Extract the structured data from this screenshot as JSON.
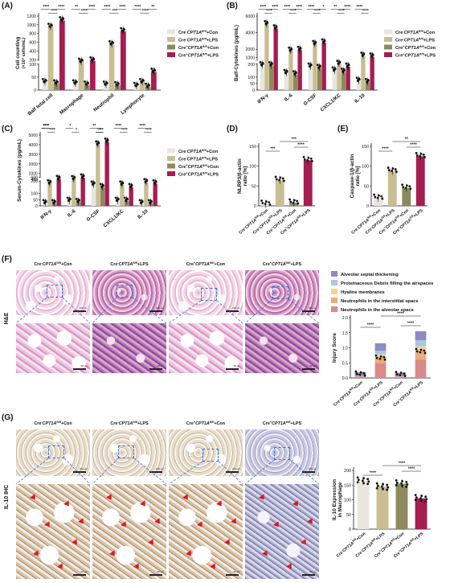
{
  "colors": {
    "con_ko": "#e9e6de",
    "lps_ko": "#c9bd93",
    "con_wt": "#8c8a5c",
    "lps_wt": "#a61d4f",
    "roi": "#2f6fd6",
    "arrow": "#e0151b",
    "injury_septal": "#8e8ac6",
    "injury_protein": "#a9c6e4",
    "injury_hyaline": "#f3d58a",
    "injury_interstitial": "#e9ad7e",
    "injury_alveolar": "#d98b86"
  },
  "panels": {
    "A": "(A)",
    "B": "(B)",
    "C": "(C)",
    "D": "(D)",
    "E": "(E)",
    "F": "(F)",
    "G": "(G)"
  },
  "legend4": [
    {
      "pre": "Cre",
      "sup1": "-",
      "gene": "CPT1A",
      "sup2": "fl/fl",
      "post": "+Con"
    },
    {
      "pre": "Cre",
      "sup1": "-",
      "gene": "CPT1A",
      "sup2": "fl/fl",
      "post": "+LPS"
    },
    {
      "pre": "Cre",
      "sup1": "+",
      "gene": "CPT1A",
      "sup2": "fl/fl",
      "post": "+Con"
    },
    {
      "pre": "Cre",
      "sup1": "+",
      "gene": "CPT1A",
      "sup2": "fl/fl",
      "post": "+LPS"
    }
  ],
  "x_groups4": [
    {
      "pre": "Cre",
      "sup1": "-",
      "gene": "CPT1A",
      "sup2": "fl/fl",
      "post": "+Con"
    },
    {
      "pre": "Cre",
      "sup1": "-",
      "gene": "CPT1A",
      "sup2": "fl/fl",
      "post": "+LPS"
    },
    {
      "pre": "Cre",
      "sup1": "+",
      "gene": "CPT1A",
      "sup2": "fl/fl",
      "post": "+Con"
    },
    {
      "pre": "Cre",
      "sup1": "+",
      "gene": "CPT1A",
      "sup2": "fl/fl",
      "post": "+LPS"
    }
  ],
  "rows": {
    "F": "H&E",
    "G": "IL-10  IHC"
  },
  "scale": {
    "low": "200 μm",
    "high": "50 μm"
  },
  "chart_data": [
    {
      "panel": "A",
      "type": "bar",
      "ylabel": "Cell counting",
      "ylabel2": "(×10⁴ cells/mL)",
      "categories": [
        "Balf total cell",
        "Macrophage",
        "Neutrophil",
        "Lymphocyte"
      ],
      "yticks": [
        "0",
        "50",
        "100",
        "200",
        "400",
        "600",
        "800",
        "1000",
        "1200"
      ],
      "ylim": [
        0,
        1200
      ],
      "break_at": 100,
      "series": [
        {
          "values": [
            30,
            25,
            20,
            15
          ]
        },
        {
          "values": [
            950,
            150,
            550,
            30
          ]
        },
        {
          "values": [
            25,
            20,
            18,
            12
          ]
        },
        {
          "values": [
            1100,
            180,
            850,
            70
          ]
        }
      ],
      "sig": [
        "****",
        "****",
        "****",
        "**",
        "****",
        "****",
        "****",
        "***",
        "****",
        "****",
        "****",
        "**"
      ]
    },
    {
      "panel": "B",
      "type": "bar",
      "ylabel": "Balf-Cytokines (pg/mL)",
      "categories": [
        "IFN-γ",
        "IL-6",
        "G-CSF",
        "CXCL1/KC",
        "IL-10"
      ],
      "yticks": [
        "0",
        "50",
        "100",
        "200",
        "1000",
        "2000",
        "4000",
        "6000"
      ],
      "ylim": [
        0,
        6000
      ],
      "break_at": 200,
      "series": [
        {
          "values": [
            190,
            130,
            180,
            150,
            70
          ]
        },
        {
          "values": [
            5000,
            1800,
            2600,
            220,
            1200
          ]
        },
        {
          "values": [
            190,
            120,
            170,
            140,
            60
          ]
        },
        {
          "values": [
            4500,
            1900,
            2800,
            180,
            1100
          ]
        }
      ],
      "sig": [
        "****",
        "****",
        "****",
        "****",
        "****",
        "****",
        "****",
        "****",
        "*",
        "**",
        "****",
        "****",
        "****",
        "****"
      ]
    },
    {
      "panel": "C",
      "type": "bar",
      "ylabel": "Serum-Cytokines (pg/mL)",
      "categories": [
        "IFN-γ",
        "IL-6",
        "G-CSF",
        "CXCL1/KC",
        "IL-10"
      ],
      "yticks": [
        "0",
        "50",
        "100",
        "200",
        "400",
        "600",
        "1000",
        "2000",
        "3000",
        "4000",
        "5000"
      ],
      "ylim": [
        0,
        5000
      ],
      "break_at": 200,
      "series": [
        {
          "values": [
            20,
            40,
            170,
            40,
            20
          ]
        },
        {
          "values": [
            180,
            380,
            4000,
            170,
            190
          ]
        },
        {
          "values": [
            20,
            30,
            150,
            40,
            20
          ]
        },
        {
          "values": [
            400,
            560,
            4300,
            150,
            180
          ]
        }
      ],
      "sig": [
        "****",
        "****",
        "****",
        "*",
        "*",
        "****",
        "**",
        "*",
        "****",
        "****",
        "****",
        "****"
      ]
    },
    {
      "panel": "D",
      "type": "bar",
      "ylabel": "NLRP3/β-actin",
      "ylabel2": "ratio [%]",
      "yticks": [
        "0",
        "50",
        "100",
        "150"
      ],
      "ylim": [
        0,
        150
      ],
      "values": [
        5,
        65,
        8,
        115
      ],
      "sig": [
        "***",
        "***",
        "****"
      ]
    },
    {
      "panel": "E",
      "type": "bar",
      "ylabel": "Caspase-1/β-actin",
      "ylabel2": "ratio [%]",
      "yticks": [
        "0",
        "50",
        "100",
        "150"
      ],
      "ylim": [
        0,
        150
      ],
      "values": [
        20,
        88,
        45,
        125
      ],
      "sig": [
        "****",
        "**",
        "****"
      ]
    },
    {
      "panel": "F",
      "type": "bar",
      "ylabel": "Injury Score",
      "yticks": [
        "0.0",
        "0.5",
        "1.0",
        "1.5",
        "2.0"
      ],
      "ylim": [
        0,
        2.0
      ],
      "stack_names": [
        "Alveolar septal thickening",
        "Proteinaceous Debris filling the airspaces",
        "Hyaline membranes",
        "Neutrophils in the interstitial space",
        "Neutrophils in the alveolar space"
      ],
      "stacks": [
        [
          0.12,
          0.25,
          0.12,
          0.3
        ],
        [
          0.0,
          0.12,
          0.0,
          0.2
        ],
        [
          0.0,
          0.08,
          0.0,
          0.15
        ],
        [
          0.02,
          0.2,
          0.02,
          0.3
        ],
        [
          0.05,
          0.5,
          0.03,
          0.6
        ]
      ],
      "sig": [
        "****",
        "****",
        "****"
      ]
    },
    {
      "panel": "G",
      "type": "bar",
      "ylabel": "IL-10 Expression",
      "ylabel2": "in Macrophage",
      "yticks": [
        "0",
        "50",
        "100",
        "150",
        "200"
      ],
      "ylim": [
        0,
        200
      ],
      "values": [
        165,
        145,
        155,
        105
      ],
      "sig": [
        "****",
        "****",
        "****"
      ]
    }
  ]
}
